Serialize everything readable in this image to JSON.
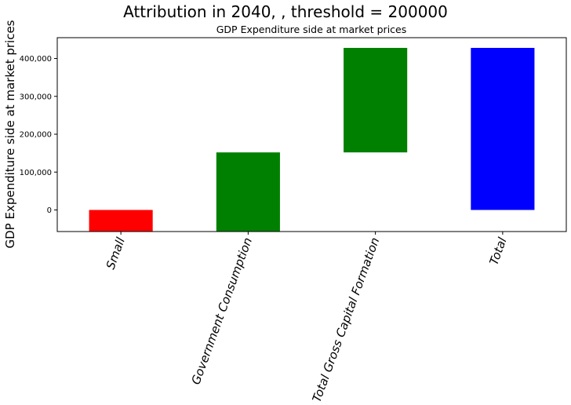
{
  "chart_data": {
    "type": "bar",
    "title": "Attribution in 2040, , threshold = 200000",
    "subtitle": "GDP Expenditure side at market prices",
    "ylabel": "GDP Expenditure side at market prices",
    "xlabel": "",
    "categories": [
      "Small",
      "Government Consumption",
      "Total Gross Capital Formation",
      "Total"
    ],
    "bars": [
      {
        "category": "Small",
        "bottom": -57000,
        "top": 0,
        "color": "#ff0000"
      },
      {
        "category": "Government Consumption",
        "bottom": -57000,
        "top": 152000,
        "color": "#008000"
      },
      {
        "category": "Total Gross Capital Formation",
        "bottom": 152000,
        "top": 428000,
        "color": "#008000"
      },
      {
        "category": "Total",
        "bottom": 0,
        "top": 428000,
        "color": "#0000ff"
      }
    ],
    "ylim": [
      -57000,
      455000
    ],
    "yticks": [
      0,
      100000,
      200000,
      300000,
      400000
    ],
    "ytick_labels": [
      "0",
      "100,000",
      "200,000",
      "300,000",
      "400,000"
    ],
    "grid": false,
    "legend": "none"
  }
}
